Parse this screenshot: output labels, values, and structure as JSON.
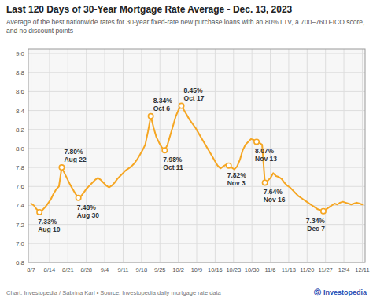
{
  "chart_data": {
    "type": "line",
    "title": "Last 120 Days of 30-Year Mortgage Rate Average - Dec. 13, 2023",
    "subtitle": "Average of the best nationwide rates for 30-year fixed-rate new purchase loans with an 80% LTV, a 700–760 FICO score, and no discount points",
    "footer": "Chart: Investopedia / Sabrina Karl • Source: Investopedia daily mortgage rate data",
    "credit": "Ⓢ Investopedia",
    "color": "#f5a623",
    "grid": true,
    "xlim": [
      -1,
      120
    ],
    "xticks": [
      {
        "value": 0,
        "label": "8/7"
      },
      {
        "value": 6.611111111111111,
        "label": "8/14"
      },
      {
        "value": 13.222222222222221,
        "label": "8/21"
      },
      {
        "value": 19.833333333333332,
        "label": "8/28"
      },
      {
        "value": 26.444444444444443,
        "label": "9/4"
      },
      {
        "value": 33.05555555555556,
        "label": "9/11"
      },
      {
        "value": 39.666666666666664,
        "label": "9/18"
      },
      {
        "value": 46.27777777777778,
        "label": "9/25"
      },
      {
        "value": 52.888888888888886,
        "label": "10/2"
      },
      {
        "value": 59.5,
        "label": "10/9"
      },
      {
        "value": 66.11111111111111,
        "label": "10/16"
      },
      {
        "value": 72.72222222222221,
        "label": "10/23"
      },
      {
        "value": 79.33333333333333,
        "label": "10/30"
      },
      {
        "value": 85.94444444444444,
        "label": "11/6"
      },
      {
        "value": 92.55555555555556,
        "label": "11/13"
      },
      {
        "value": 99.16666666666667,
        "label": "11/20"
      },
      {
        "value": 105.77777777777777,
        "label": "11/27"
      },
      {
        "value": 112.38888888888889,
        "label": "12/4"
      },
      {
        "value": 119,
        "label": "12/11"
      }
    ],
    "ylim": [
      6.8,
      9.05
    ],
    "yticks": [
      6.8,
      {
        "value": 7.0,
        "label": "7.0"
      },
      7.2,
      7.4,
      7.6,
      7.8,
      {
        "value": 8.0,
        "label": "8.0"
      },
      8.2,
      8.4,
      8.6,
      8.8,
      {
        "value": 9.0,
        "label": "9.0"
      }
    ],
    "annotations": [
      {
        "text": "7.33%\nAug 10",
        "x": 3,
        "y": 7.33
      },
      {
        "text": "7.80%\nAug 22",
        "x": 11,
        "y": 7.8
      },
      {
        "text": "7.48%\nAug 30",
        "x": 17,
        "y": 7.48
      },
      {
        "text": "8.34%\nOct 6",
        "x": 43,
        "y": 8.34
      },
      {
        "text": "7.98%\nOct 11",
        "x": 48,
        "y": 7.98
      },
      {
        "text": "8.45%\nOct 17",
        "x": 54,
        "y": 8.45
      },
      {
        "text": "7.82%\nNov 3",
        "x": 71,
        "y": 7.82
      },
      {
        "text": "8.07%\nNov 13",
        "x": 81,
        "y": 8.07
      },
      {
        "text": "7.64%\nNov 16",
        "x": 84,
        "y": 7.64
      },
      {
        "text": "7.34%\nDec 7",
        "x": 105,
        "y": 7.34
      }
    ],
    "x": [
      0,
      1,
      2,
      3,
      4,
      5,
      6,
      7,
      8,
      9,
      10,
      11,
      12,
      13,
      14,
      15,
      16,
      17,
      18,
      19,
      20,
      21,
      22,
      23,
      24,
      25,
      26,
      27,
      28,
      29,
      30,
      31,
      32,
      33,
      34,
      35,
      36,
      37,
      38,
      39,
      40,
      41,
      42,
      43,
      44,
      45,
      46,
      47,
      48,
      49,
      50,
      51,
      52,
      53,
      54,
      55,
      56,
      57,
      58,
      59,
      60,
      61,
      62,
      63,
      64,
      65,
      66,
      67,
      68,
      69,
      70,
      71,
      72,
      73,
      74,
      75,
      76,
      77,
      78,
      79,
      80,
      81,
      82,
      83,
      84,
      85,
      86,
      87,
      88,
      89,
      90,
      91,
      92,
      93,
      94,
      95,
      96,
      97,
      98,
      99,
      100,
      101,
      102,
      103,
      104,
      105,
      106,
      107,
      108,
      109,
      110,
      111,
      112,
      113,
      114,
      115,
      116,
      117,
      118,
      119
    ],
    "values": [
      7.42,
      7.4,
      7.36,
      7.33,
      7.35,
      7.38,
      7.42,
      7.46,
      7.52,
      7.57,
      7.6,
      7.8,
      7.74,
      7.68,
      7.62,
      7.57,
      7.52,
      7.48,
      7.5,
      7.54,
      7.58,
      7.61,
      7.64,
      7.67,
      7.69,
      7.67,
      7.64,
      7.61,
      7.59,
      7.61,
      7.64,
      7.68,
      7.71,
      7.74,
      7.77,
      7.79,
      7.81,
      7.84,
      7.88,
      7.93,
      7.98,
      8.04,
      8.18,
      8.34,
      8.22,
      8.12,
      8.06,
      8.01,
      7.98,
      8.04,
      8.14,
      8.24,
      8.34,
      8.41,
      8.45,
      8.4,
      8.35,
      8.3,
      8.26,
      8.22,
      8.17,
      8.12,
      8.07,
      8.02,
      7.97,
      7.92,
      7.87,
      7.82,
      7.79,
      7.81,
      7.83,
      7.82,
      7.8,
      7.78,
      7.81,
      7.88,
      7.98,
      8.04,
      8.07,
      8.1,
      8.09,
      8.07,
      8.06,
      8.04,
      7.64,
      7.66,
      7.69,
      7.74,
      7.71,
      7.7,
      7.68,
      7.64,
      7.61,
      7.59,
      7.56,
      7.53,
      7.5,
      7.48,
      7.46,
      7.44,
      7.42,
      7.4,
      7.38,
      7.36,
      7.35,
      7.34,
      7.36,
      7.38,
      7.4,
      7.42,
      7.41,
      7.43,
      7.44,
      7.43,
      7.42,
      7.41,
      7.42,
      7.43,
      7.42,
      7.41
    ]
  }
}
